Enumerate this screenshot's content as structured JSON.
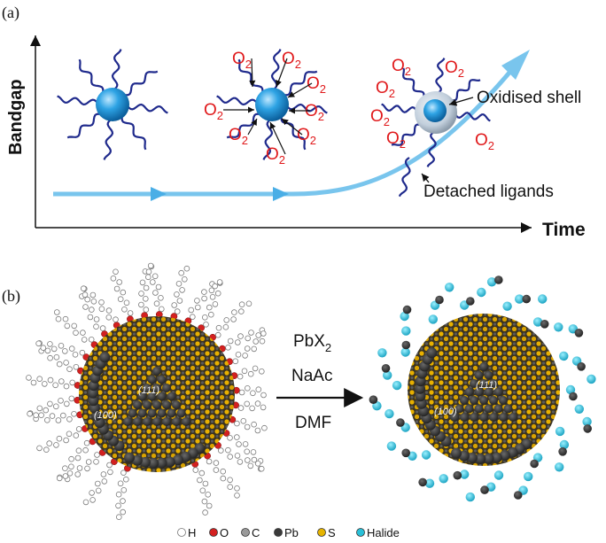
{
  "panel_a": {
    "label": "(a)",
    "y_axis_label": "Bandgap",
    "x_axis_label": "Time",
    "o2_main": "O",
    "o2_sub": "2",
    "annotations": {
      "oxidised_shell": "Oxidised shell",
      "detached_ligands": "Detached ligands"
    },
    "colors": {
      "nanoparticle": "#1e8fd6",
      "ligand": "#1f2a8c",
      "arrow": "#7cc6ee",
      "o2_text": "#e0191b",
      "shell": "#b8c6d6"
    }
  },
  "panel_b": {
    "label": "(b)",
    "reagents": [
      "PbX",
      "NaAc",
      "DMF"
    ],
    "reagent_sub": "2",
    "facet_labels": [
      "(111)",
      "(100)"
    ],
    "legend": [
      {
        "symbol": "H",
        "color": "#ffffff"
      },
      {
        "symbol": "O",
        "color": "#d32020"
      },
      {
        "symbol": "C",
        "color": "#9a9a9a"
      },
      {
        "symbol": "Pb",
        "color": "#3a3a3a"
      },
      {
        "symbol": "S",
        "color": "#e6b400"
      },
      {
        "symbol": "Halide",
        "color": "#29c0d8"
      }
    ]
  }
}
